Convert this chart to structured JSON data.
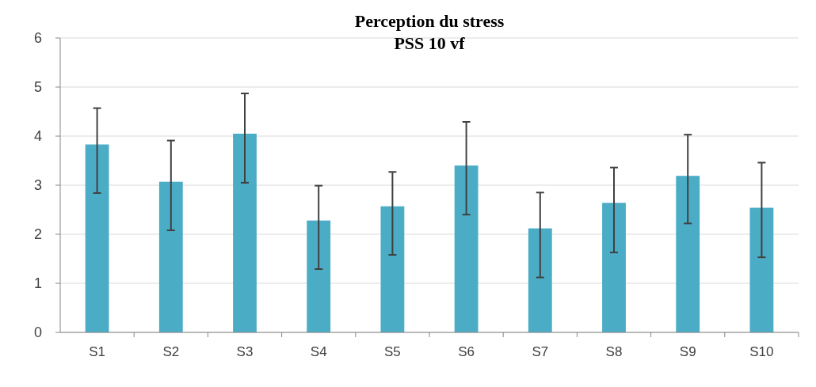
{
  "chart_data": {
    "type": "bar",
    "title": "Perception du stress",
    "subtitle": "PSS 10 vf",
    "categories": [
      "S1",
      "S2",
      "S3",
      "S4",
      "S5",
      "S6",
      "S7",
      "S8",
      "S9",
      "S10"
    ],
    "values": [
      3.83,
      3.07,
      4.05,
      2.28,
      2.57,
      3.4,
      2.12,
      2.64,
      3.19,
      2.54
    ],
    "errors": [
      [
        2.84,
        4.57
      ],
      [
        2.08,
        3.91
      ],
      [
        3.05,
        4.87
      ],
      [
        1.29,
        2.99
      ],
      [
        1.58,
        3.27
      ],
      [
        2.4,
        4.29
      ],
      [
        1.12,
        2.85
      ],
      [
        1.63,
        3.36
      ],
      [
        2.22,
        4.03
      ],
      [
        1.53,
        3.46
      ]
    ],
    "color": "#4bacc6",
    "ylim": [
      0,
      6
    ],
    "yticks": [
      0,
      1,
      2,
      3,
      4,
      5,
      6
    ],
    "grid": "y"
  }
}
